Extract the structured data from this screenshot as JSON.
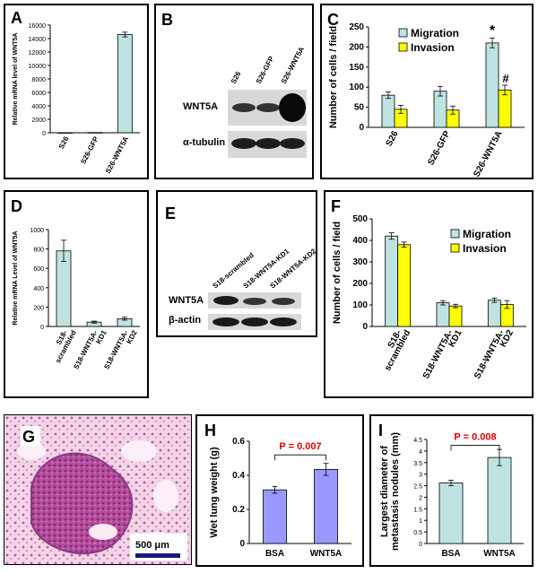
{
  "figure": {
    "panels": {
      "A": "A",
      "B": "B",
      "C": "C",
      "D": "D",
      "E": "E",
      "F": "F",
      "G": "G",
      "H": "H",
      "I": "I"
    },
    "blot_B": {
      "lanes": [
        "S26",
        "S26-GFP",
        "S26-WNT5A"
      ],
      "rows": [
        "WNT5A",
        "α-tubulin"
      ]
    },
    "blot_E": {
      "lanes": [
        "S18-scrambled",
        "S18-WNT5A-KD1",
        "S18-WNT5A-KD2"
      ],
      "rows": [
        "WNT5A",
        "β-actin"
      ]
    },
    "histology_G": {
      "scalebar": "500 μm"
    },
    "colors": {
      "blue_bar": "#bfe3e3",
      "yellow_bar": "#ffff00",
      "purple_bar": "#9999ff",
      "p_value": "#e00000"
    }
  },
  "chart_data": [
    {
      "id": "A",
      "type": "bar",
      "ylabel": "Relative mRNA level of WNT5A",
      "categories": [
        "S26",
        "S26-GFP",
        "S26-WNT5A"
      ],
      "values": [
        10,
        30,
        14600
      ],
      "errors": [
        0,
        0,
        350
      ],
      "ylim": [
        0,
        16000
      ],
      "yticks": [
        "0",
        "2000",
        "4000",
        "6000",
        "8000",
        "10000",
        "12000",
        "14000",
        "16000"
      ],
      "ytick_values": [
        0,
        2000,
        4000,
        6000,
        8000,
        10000,
        12000,
        14000,
        16000
      ]
    },
    {
      "id": "C",
      "type": "bar",
      "ylabel": "Number of cells / field",
      "categories": [
        "S26",
        "S26-GFP",
        "S26-WNT5A"
      ],
      "series": [
        {
          "name": "Migration",
          "values": [
            80,
            90,
            210
          ],
          "errors": [
            8,
            12,
            12
          ]
        },
        {
          "name": "Invasion",
          "values": [
            45,
            43,
            93
          ],
          "errors": [
            10,
            10,
            12
          ]
        }
      ],
      "annotations": [
        "*",
        "#"
      ],
      "ylim": [
        0,
        250
      ],
      "yticks": [
        "0",
        "50",
        "100",
        "150",
        "200",
        "250"
      ],
      "ytick_values": [
        0,
        50,
        100,
        150,
        200,
        250
      ],
      "legend": "top-right"
    },
    {
      "id": "D",
      "type": "bar",
      "ylabel": "Relative mRNA Level of WNT5A",
      "categories": [
        "S18-scrambled",
        "S18-WNT5A-KD1",
        "S18-WNT5A-KD2"
      ],
      "category_lines": [
        [
          "S18-",
          "scrambled"
        ],
        [
          "S18-WNT5A-",
          "KD1"
        ],
        [
          "S18-WNT5A-",
          "KD2"
        ]
      ],
      "values": [
        780,
        45,
        80
      ],
      "errors": [
        110,
        10,
        15
      ],
      "ylim": [
        0,
        1000
      ],
      "yticks": [
        "0",
        "200",
        "400",
        "600",
        "800",
        "1000"
      ],
      "ytick_values": [
        0,
        200,
        400,
        600,
        800,
        1000
      ]
    },
    {
      "id": "F",
      "type": "bar",
      "ylabel": "Number of cells / field",
      "categories": [
        "S18-scrambled",
        "S18-WNT5A-KD1",
        "S18-WNT5A-KD2"
      ],
      "category_lines": [
        [
          "S18-",
          "scrambled"
        ],
        [
          "S18-WNT5A-",
          "KD1"
        ],
        [
          "S18-WNT5A-",
          "KD2"
        ]
      ],
      "series": [
        {
          "name": "Migration",
          "values": [
            420,
            110,
            122
          ],
          "errors": [
            15,
            10,
            10
          ]
        },
        {
          "name": "Invasion",
          "values": [
            380,
            95,
            102
          ],
          "errors": [
            12,
            8,
            18
          ]
        }
      ],
      "ylim": [
        0,
        500
      ],
      "yticks": [
        "0",
        "100",
        "200",
        "300",
        "400",
        "500"
      ],
      "ytick_values": [
        0,
        100,
        200,
        300,
        400,
        500
      ],
      "legend": "top-right"
    },
    {
      "id": "H",
      "type": "bar",
      "ylabel": "Wet lung weight (g)",
      "categories": [
        "BSA",
        "WNT5A"
      ],
      "values": [
        0.315,
        0.435
      ],
      "errors": [
        0.02,
        0.035
      ],
      "pvalue": "P = 0.007",
      "ylim": [
        0,
        0.6
      ],
      "yticks": [
        "0",
        "0.2",
        "0.4",
        "0.6"
      ],
      "ytick_values": [
        0,
        0.2,
        0.4,
        0.6
      ]
    },
    {
      "id": "I",
      "type": "bar",
      "ylabel": "Largest diameter of metastasis nodules (mm)",
      "ylabel_lines": [
        "Largest diameter of",
        "metastasis nodules (mm)"
      ],
      "categories": [
        "BSA",
        "WNT5A"
      ],
      "values": [
        2.62,
        3.72
      ],
      "errors": [
        0.12,
        0.35
      ],
      "pvalue": "P = 0.008",
      "ylim": [
        0,
        4.5
      ],
      "yticks": [
        "0",
        "0.5",
        "1",
        "1.5",
        "2",
        "2.5",
        "3",
        "3.5",
        "4",
        "4.5"
      ],
      "ytick_values": [
        0,
        0.5,
        1,
        1.5,
        2,
        2.5,
        3,
        3.5,
        4,
        4.5
      ]
    }
  ]
}
